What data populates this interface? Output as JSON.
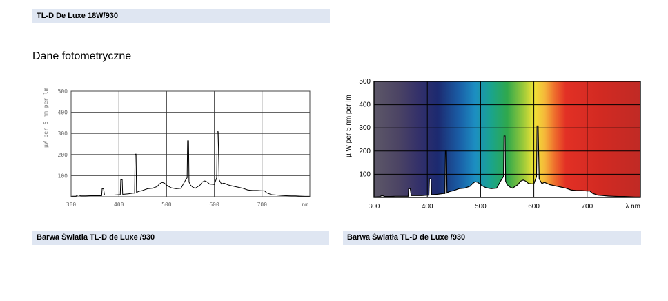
{
  "header": {
    "product_title": "TL-D De Luxe 18W/930"
  },
  "section": {
    "title": "Dane fotometryczne"
  },
  "captions": {
    "left": "Barwa Światła TL-D de Luxe /930",
    "right": "Barwa Światła TL-D de Luxe /930"
  },
  "chart_data": [
    {
      "type": "line",
      "ylabel": "µW per 5 nm per lm",
      "xlabel": "nm",
      "xlim": [
        300,
        800
      ],
      "ylim": [
        0,
        500
      ],
      "xticks": [
        300,
        400,
        500,
        600,
        700
      ],
      "yticks": [
        100,
        200,
        300,
        400,
        500
      ],
      "grid": true,
      "background": "white",
      "x": [
        300,
        310,
        315,
        318,
        320,
        330,
        340,
        350,
        360,
        364,
        365,
        368,
        370,
        380,
        390,
        400,
        403,
        404,
        407,
        408,
        410,
        420,
        430,
        433,
        434,
        436,
        437,
        440,
        450,
        460,
        470,
        480,
        485,
        490,
        495,
        500,
        505,
        510,
        520,
        530,
        540,
        543,
        544,
        546,
        547,
        550,
        555,
        560,
        570,
        575,
        580,
        585,
        590,
        600,
        605,
        606,
        608,
        610,
        615,
        620,
        625,
        630,
        640,
        650,
        660,
        670,
        680,
        690,
        700,
        705,
        710,
        720,
        730,
        740,
        750,
        760,
        770,
        780,
        790,
        800
      ],
      "y": [
        2,
        3,
        8,
        6,
        4,
        4,
        5,
        5,
        5,
        5,
        38,
        38,
        8,
        8,
        8,
        10,
        10,
        80,
        80,
        12,
        12,
        14,
        17,
        17,
        202,
        202,
        20,
        24,
        30,
        38,
        40,
        48,
        60,
        68,
        65,
        55,
        48,
        42,
        38,
        40,
        80,
        90,
        265,
        265,
        70,
        55,
        45,
        40,
        55,
        70,
        75,
        70,
        60,
        58,
        90,
        308,
        308,
        80,
        60,
        65,
        60,
        55,
        50,
        45,
        40,
        32,
        30,
        30,
        28,
        28,
        18,
        10,
        8,
        6,
        5,
        4,
        4,
        3,
        2,
        2
      ]
    },
    {
      "type": "line",
      "ylabel": "µ W per 5 nm per lm",
      "xlabel": "λ nm",
      "xlim": [
        300,
        800
      ],
      "ylim": [
        0,
        500
      ],
      "xticks": [
        300,
        400,
        500,
        600,
        700
      ],
      "yticks": [
        100,
        200,
        300,
        400,
        500
      ],
      "grid": true,
      "background": "visible-spectrum gradient",
      "x": [
        300,
        310,
        315,
        318,
        320,
        330,
        340,
        350,
        360,
        364,
        365,
        368,
        370,
        380,
        390,
        400,
        403,
        404,
        407,
        408,
        410,
        420,
        430,
        433,
        434,
        436,
        437,
        440,
        450,
        460,
        470,
        480,
        485,
        490,
        495,
        500,
        505,
        510,
        520,
        530,
        540,
        543,
        544,
        546,
        547,
        550,
        555,
        560,
        570,
        575,
        580,
        585,
        590,
        600,
        605,
        606,
        608,
        610,
        615,
        620,
        625,
        630,
        640,
        650,
        660,
        670,
        680,
        690,
        700,
        705,
        710,
        720,
        730,
        740,
        750,
        760,
        770,
        780,
        790,
        800
      ],
      "y": [
        2,
        3,
        8,
        6,
        4,
        4,
        5,
        5,
        5,
        5,
        38,
        38,
        8,
        8,
        8,
        10,
        10,
        80,
        80,
        12,
        12,
        14,
        17,
        17,
        202,
        202,
        20,
        24,
        30,
        38,
        40,
        48,
        60,
        68,
        65,
        55,
        48,
        42,
        38,
        40,
        80,
        90,
        265,
        265,
        70,
        55,
        45,
        40,
        55,
        70,
        75,
        70,
        60,
        58,
        90,
        308,
        308,
        80,
        60,
        65,
        60,
        55,
        50,
        45,
        40,
        32,
        30,
        30,
        28,
        28,
        18,
        10,
        8,
        6,
        5,
        4,
        4,
        3,
        2,
        2
      ]
    }
  ]
}
